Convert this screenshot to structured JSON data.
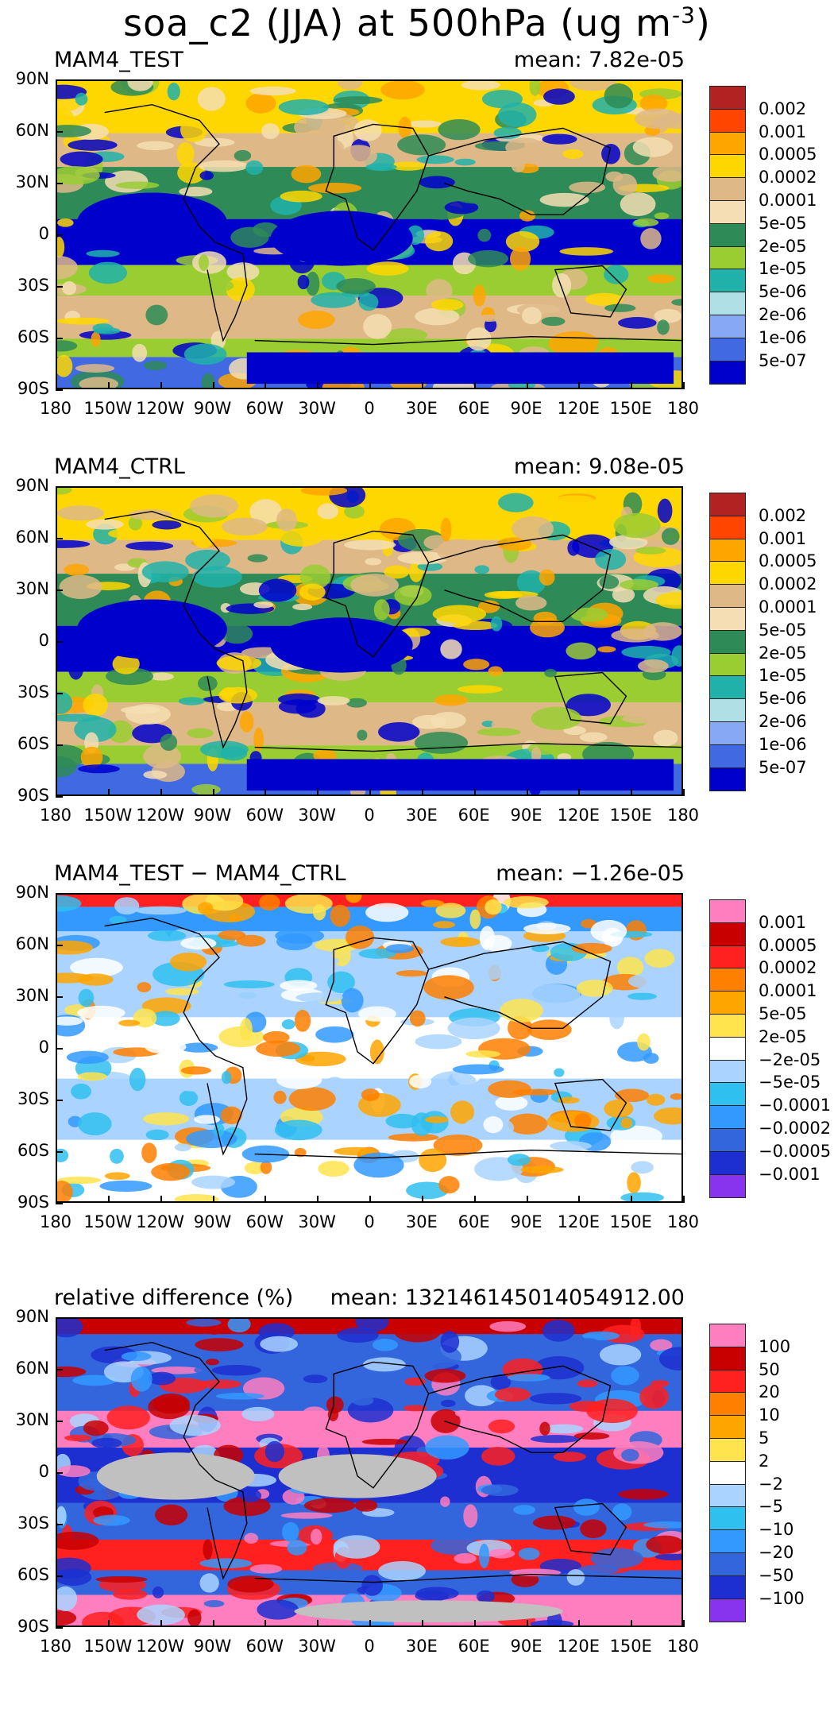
{
  "title": {
    "main": "soa_c2 (JJA) at 500hPa (ug m",
    "sup": "-3",
    "end": ")"
  },
  "lat_labels": [
    "90N",
    "60N",
    "30N",
    "0",
    "30S",
    "60S",
    "90S"
  ],
  "lon_labels": [
    "180",
    "150W",
    "120W",
    "90W",
    "60W",
    "30W",
    "0",
    "30E",
    "60E",
    "90E",
    "120E",
    "150E",
    "180"
  ],
  "panels": [
    {
      "name": "MAM4_TEST",
      "mean": "mean: 7.82e-05",
      "colors": [
        "#b22222",
        "#ff4500",
        "#ffa500",
        "#ffd700",
        "#deb887",
        "#f5deb3",
        "#2e8b57",
        "#9acd32",
        "#20b2aa",
        "#b0e0e6",
        "#87a9f5",
        "#4169e1",
        "#0000cd"
      ],
      "labels": [
        "0.002",
        "0.001",
        "0.0005",
        "0.0002",
        "0.0001",
        "5e-05",
        "2e-05",
        "1e-05",
        "5e-06",
        "2e-06",
        "1e-06",
        "5e-07"
      ]
    },
    {
      "name": "MAM4_CTRL",
      "mean": "mean: 9.08e-05",
      "colors": [
        "#b22222",
        "#ff4500",
        "#ffa500",
        "#ffd700",
        "#deb887",
        "#f5deb3",
        "#2e8b57",
        "#9acd32",
        "#20b2aa",
        "#b0e0e6",
        "#87a9f5",
        "#4169e1",
        "#0000cd"
      ],
      "labels": [
        "0.002",
        "0.001",
        "0.0005",
        "0.0002",
        "0.0001",
        "5e-05",
        "2e-05",
        "1e-05",
        "5e-06",
        "2e-06",
        "1e-06",
        "5e-07"
      ]
    },
    {
      "name": "MAM4_TEST − MAM4_CTRL",
      "mean": "mean: −1.26e-05",
      "colors": [
        "#ff7ec0",
        "#c80000",
        "#ff2020",
        "#ff7f00",
        "#ffa500",
        "#ffe44d",
        "#ffffff",
        "#aad4ff",
        "#30c0f0",
        "#3399ff",
        "#3366dd",
        "#1d2fd0",
        "#8833ee"
      ],
      "labels": [
        "0.001",
        "0.0005",
        "0.0002",
        "0.0001",
        "5e-05",
        "2e-05",
        "−2e-05",
        "−5e-05",
        "−0.0001",
        "−0.0002",
        "−0.0005",
        "−0.001"
      ]
    },
    {
      "name": "relative difference (%)",
      "mean": "mean: 1321461450140549l2.00",
      "colors": [
        "#ff7ec0",
        "#c80000",
        "#ff2020",
        "#ff7f00",
        "#ffa500",
        "#ffe44d",
        "#ffffff",
        "#aad4ff",
        "#30c0f0",
        "#3399ff",
        "#3366dd",
        "#1d2fd0",
        "#8833ee"
      ],
      "labels": [
        "100",
        "50",
        "20",
        "10",
        "5",
        "2",
        "−2",
        "−5",
        "−10",
        "−20",
        "−50",
        "−100"
      ]
    }
  ]
}
